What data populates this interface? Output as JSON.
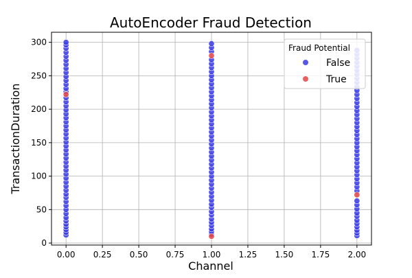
{
  "chart_data": {
    "type": "scatter",
    "title": "AutoEncoder Fraud Detection",
    "xlabel": "Channel",
    "ylabel": "TransactionDuration",
    "xlim": [
      -0.1,
      2.1
    ],
    "ylim": [
      -3,
      315
    ],
    "x_ticks": [
      "0.00",
      "0.25",
      "0.50",
      "0.75",
      "1.00",
      "1.25",
      "1.50",
      "1.75",
      "2.00"
    ],
    "y_ticks": [
      "0",
      "50",
      "100",
      "150",
      "200",
      "250",
      "300"
    ],
    "grid": true,
    "legend": {
      "title": "Fraud Potential",
      "placement": "top-right",
      "entries": [
        {
          "label": "False",
          "color": "#3a3ae6"
        },
        {
          "label": "True",
          "color": "#e64444"
        }
      ]
    },
    "series": [
      {
        "name": "False",
        "color": "#3a3ae6",
        "points": [
          [
            0,
            12
          ],
          [
            0,
            16
          ],
          [
            0,
            20
          ],
          [
            0,
            24
          ],
          [
            0,
            28
          ],
          [
            0,
            33
          ],
          [
            0,
            38
          ],
          [
            0,
            44
          ],
          [
            0,
            50
          ],
          [
            0,
            56
          ],
          [
            0,
            62
          ],
          [
            0,
            68
          ],
          [
            0,
            73
          ],
          [
            0,
            79
          ],
          [
            0,
            85
          ],
          [
            0,
            91
          ],
          [
            0,
            97
          ],
          [
            0,
            103
          ],
          [
            0,
            109
          ],
          [
            0,
            115
          ],
          [
            0,
            121
          ],
          [
            0,
            127
          ],
          [
            0,
            133
          ],
          [
            0,
            139
          ],
          [
            0,
            145
          ],
          [
            0,
            151
          ],
          [
            0,
            157
          ],
          [
            0,
            163
          ],
          [
            0,
            169
          ],
          [
            0,
            175
          ],
          [
            0,
            181
          ],
          [
            0,
            187
          ],
          [
            0,
            193
          ],
          [
            0,
            199
          ],
          [
            0,
            205
          ],
          [
            0,
            211
          ],
          [
            0,
            217
          ],
          [
            0,
            226
          ],
          [
            0,
            231
          ],
          [
            0,
            237
          ],
          [
            0,
            243
          ],
          [
            0,
            249
          ],
          [
            0,
            255
          ],
          [
            0,
            261
          ],
          [
            0,
            267
          ],
          [
            0,
            273
          ],
          [
            0,
            279
          ],
          [
            0,
            285
          ],
          [
            0,
            291
          ],
          [
            0,
            296
          ],
          [
            0,
            300
          ],
          [
            1,
            13
          ],
          [
            1,
            17
          ],
          [
            1,
            21
          ],
          [
            1,
            26
          ],
          [
            1,
            31
          ],
          [
            1,
            36
          ],
          [
            1,
            42
          ],
          [
            1,
            47
          ],
          [
            1,
            53
          ],
          [
            1,
            58
          ],
          [
            1,
            64
          ],
          [
            1,
            70
          ],
          [
            1,
            76
          ],
          [
            1,
            82
          ],
          [
            1,
            88
          ],
          [
            1,
            94
          ],
          [
            1,
            100
          ],
          [
            1,
            106
          ],
          [
            1,
            112
          ],
          [
            1,
            118
          ],
          [
            1,
            124
          ],
          [
            1,
            130
          ],
          [
            1,
            136
          ],
          [
            1,
            142
          ],
          [
            1,
            148
          ],
          [
            1,
            154
          ],
          [
            1,
            160
          ],
          [
            1,
            166
          ],
          [
            1,
            172
          ],
          [
            1,
            178
          ],
          [
            1,
            184
          ],
          [
            1,
            190
          ],
          [
            1,
            196
          ],
          [
            1,
            202
          ],
          [
            1,
            208
          ],
          [
            1,
            214
          ],
          [
            1,
            220
          ],
          [
            1,
            226
          ],
          [
            1,
            232
          ],
          [
            1,
            238
          ],
          [
            1,
            244
          ],
          [
            1,
            250
          ],
          [
            1,
            256
          ],
          [
            1,
            262
          ],
          [
            1,
            268
          ],
          [
            1,
            274
          ],
          [
            1,
            286
          ],
          [
            1,
            292
          ],
          [
            1,
            298
          ],
          [
            2,
            11
          ],
          [
            2,
            15
          ],
          [
            2,
            19
          ],
          [
            2,
            24
          ],
          [
            2,
            29
          ],
          [
            2,
            34
          ],
          [
            2,
            40
          ],
          [
            2,
            45
          ],
          [
            2,
            51
          ],
          [
            2,
            57
          ],
          [
            2,
            63
          ],
          [
            2,
            78
          ],
          [
            2,
            84
          ],
          [
            2,
            90
          ],
          [
            2,
            96
          ],
          [
            2,
            102
          ],
          [
            2,
            108
          ],
          [
            2,
            114
          ],
          [
            2,
            120
          ],
          [
            2,
            126
          ],
          [
            2,
            132
          ],
          [
            2,
            138
          ],
          [
            2,
            144
          ],
          [
            2,
            150
          ],
          [
            2,
            156
          ],
          [
            2,
            162
          ],
          [
            2,
            168
          ],
          [
            2,
            174
          ],
          [
            2,
            180
          ],
          [
            2,
            186
          ],
          [
            2,
            192
          ],
          [
            2,
            198
          ],
          [
            2,
            204
          ],
          [
            2,
            210
          ],
          [
            2,
            216
          ],
          [
            2,
            222
          ],
          [
            2,
            228
          ],
          [
            2,
            234
          ],
          [
            2,
            240
          ],
          [
            2,
            246
          ],
          [
            2,
            252
          ],
          [
            2,
            258
          ],
          [
            2,
            264
          ],
          [
            2,
            270
          ],
          [
            2,
            276
          ],
          [
            2,
            282
          ],
          [
            2,
            288
          ]
        ]
      },
      {
        "name": "True",
        "color": "#e64444",
        "points": [
          [
            0,
            222
          ],
          [
            1,
            10
          ],
          [
            1,
            280
          ],
          [
            2,
            72
          ]
        ]
      }
    ]
  }
}
